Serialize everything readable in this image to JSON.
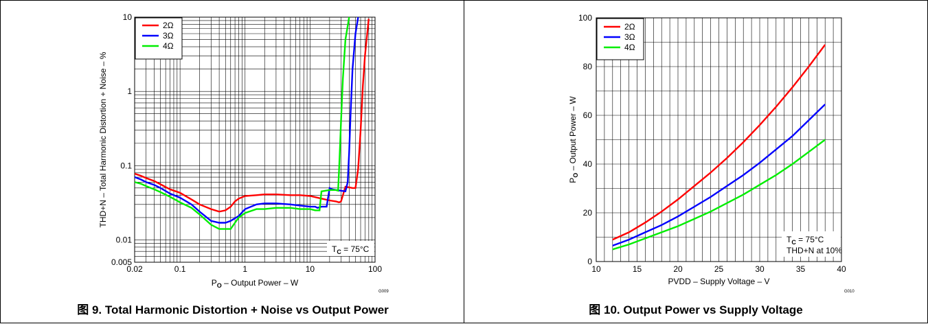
{
  "chart_data": [
    {
      "type": "line",
      "x_scale": "log",
      "y_scale": "log",
      "xlabel_main": "P",
      "xlabel_sub": "O",
      "xlabel_rest": " – Output Power – W",
      "ylabel": "THD+N – Total Harmonic Distortion + Noise – %",
      "xlim": [
        0.02,
        100
      ],
      "ylim": [
        0.005,
        10
      ],
      "xticks": [
        "0.02",
        "0.1",
        "1",
        "10",
        "100"
      ],
      "xtick_values": [
        0.02,
        0.1,
        1,
        10,
        100
      ],
      "yticks": [
        "0.005",
        "0.01",
        "0.1",
        "1",
        "10"
      ],
      "ytick_values": [
        0.005,
        0.01,
        0.1,
        1,
        10
      ],
      "grid": true,
      "legend_position": "top-left",
      "annotation_main": "T",
      "annotation_sub": "C",
      "annotation_rest": " = 75°C",
      "figure_code": "G009",
      "caption": "图 9. Total Harmonic Distortion + Noise vs Output Power",
      "series": [
        {
          "name": "2Ω",
          "color": "#ff0000",
          "x": [
            0.02,
            0.025,
            0.03,
            0.04,
            0.05,
            0.07,
            0.1,
            0.15,
            0.2,
            0.3,
            0.4,
            0.5,
            0.6,
            0.7,
            0.8,
            1,
            1.5,
            2,
            3,
            5,
            7,
            10,
            15,
            20,
            25,
            28,
            30,
            35,
            40,
            45,
            50,
            55,
            60,
            65,
            70,
            75,
            80
          ],
          "y": [
            0.078,
            0.073,
            0.068,
            0.062,
            0.056,
            0.048,
            0.043,
            0.035,
            0.03,
            0.026,
            0.024,
            0.025,
            0.028,
            0.033,
            0.036,
            0.039,
            0.04,
            0.041,
            0.041,
            0.04,
            0.04,
            0.039,
            0.036,
            0.034,
            0.033,
            0.032,
            0.033,
            0.052,
            0.051,
            0.05,
            0.05,
            0.09,
            0.3,
            1.2,
            3.0,
            5.5,
            9.5
          ]
        },
        {
          "name": "3Ω",
          "color": "#0000ff",
          "x": [
            0.02,
            0.025,
            0.03,
            0.04,
            0.05,
            0.07,
            0.1,
            0.15,
            0.2,
            0.3,
            0.4,
            0.5,
            0.6,
            0.8,
            1,
            1.5,
            2,
            3,
            5,
            7,
            10,
            12,
            13,
            15,
            18,
            20,
            22,
            25,
            30,
            35,
            38,
            40,
            42,
            45,
            50,
            55
          ],
          "y": [
            0.07,
            0.065,
            0.06,
            0.055,
            0.05,
            0.042,
            0.037,
            0.03,
            0.024,
            0.018,
            0.017,
            0.017,
            0.018,
            0.021,
            0.026,
            0.03,
            0.031,
            0.031,
            0.03,
            0.029,
            0.028,
            0.028,
            0.027,
            0.028,
            0.028,
            0.05,
            0.048,
            0.047,
            0.046,
            0.045,
            0.06,
            0.15,
            0.5,
            2.0,
            6.0,
            10
          ]
        },
        {
          "name": "4Ω",
          "color": "#00ee00",
          "x": [
            0.02,
            0.025,
            0.03,
            0.04,
            0.05,
            0.07,
            0.1,
            0.15,
            0.2,
            0.3,
            0.4,
            0.5,
            0.6,
            0.7,
            0.8,
            1,
            1.5,
            2,
            3,
            5,
            7,
            10,
            12,
            14,
            15,
            20,
            25,
            27,
            28,
            30,
            32,
            35,
            40
          ],
          "y": [
            0.06,
            0.057,
            0.053,
            0.048,
            0.044,
            0.038,
            0.032,
            0.027,
            0.022,
            0.016,
            0.014,
            0.014,
            0.014,
            0.017,
            0.02,
            0.023,
            0.026,
            0.026,
            0.027,
            0.027,
            0.026,
            0.026,
            0.025,
            0.025,
            0.045,
            0.047,
            0.047,
            0.046,
            0.09,
            0.4,
            1.5,
            5.0,
            10
          ]
        }
      ]
    },
    {
      "type": "line",
      "xlabel": "PVDD – Supply Voltage – V",
      "ylabel_main": "P",
      "ylabel_sub": "O",
      "ylabel_rest": " – Output Power – W",
      "xlim": [
        10,
        40
      ],
      "ylim": [
        0,
        100
      ],
      "xticks": [
        "10",
        "15",
        "20",
        "25",
        "30",
        "35",
        "40"
      ],
      "xtick_values": [
        10,
        15,
        20,
        25,
        30,
        35,
        40
      ],
      "yticks": [
        "0",
        "20",
        "40",
        "60",
        "80",
        "100"
      ],
      "ytick_values": [
        0,
        20,
        40,
        60,
        80,
        100
      ],
      "grid": true,
      "legend_position": "top-left",
      "annotation_main": "T",
      "annotation_sub": "C",
      "annotation_rest": " = 75°C",
      "annotation2": "THD+N at 10%",
      "figure_code": "G010",
      "caption": "图 10. Output Power vs Supply Voltage",
      "series": [
        {
          "name": "2Ω",
          "color": "#ff0000",
          "x": [
            12,
            14,
            16,
            18,
            20,
            22,
            24,
            26,
            28,
            30,
            32,
            34,
            36,
            38
          ],
          "y": [
            9,
            12,
            16,
            20.5,
            25.5,
            31,
            36.5,
            42.5,
            49,
            56,
            63.5,
            71.5,
            80,
            89
          ]
        },
        {
          "name": "3Ω",
          "color": "#0000ff",
          "x": [
            12,
            14,
            16,
            18,
            20,
            22,
            24,
            26,
            28,
            30,
            32,
            34,
            36,
            38
          ],
          "y": [
            6.5,
            9,
            12,
            15,
            18.5,
            22.5,
            26.5,
            31,
            35.5,
            40.5,
            46,
            51.5,
            58,
            64.5
          ]
        },
        {
          "name": "4Ω",
          "color": "#00ee00",
          "x": [
            12,
            14,
            16,
            18,
            20,
            22,
            24,
            26,
            28,
            30,
            32,
            34,
            36,
            38
          ],
          "y": [
            5,
            7,
            9.5,
            12,
            14.5,
            17.5,
            20.5,
            24,
            27.5,
            31.5,
            35.5,
            40,
            45,
            50
          ]
        }
      ]
    }
  ]
}
